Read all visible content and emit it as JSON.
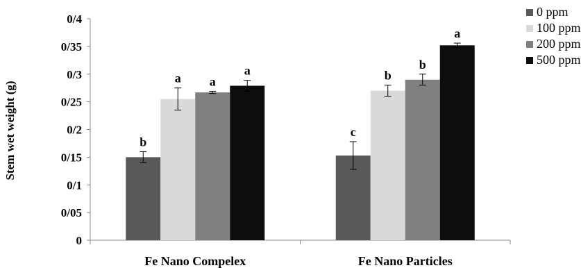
{
  "chart_data": {
    "type": "bar",
    "ylabel": "Stem wet weight (g)",
    "xlabel": "",
    "ylim": [
      0,
      0.4
    ],
    "y_ticks": [
      {
        "value": 0,
        "label": "0"
      },
      {
        "value": 0.05,
        "label": "0/05"
      },
      {
        "value": 0.1,
        "label": "0/1"
      },
      {
        "value": 0.15,
        "label": "0/15"
      },
      {
        "value": 0.2,
        "label": "0/2"
      },
      {
        "value": 0.25,
        "label": "0/25"
      },
      {
        "value": 0.3,
        "label": "0/3"
      },
      {
        "value": 0.35,
        "label": "0/35"
      },
      {
        "value": 0.4,
        "label": "0/4"
      }
    ],
    "categories": [
      "Fe Nano Compelex",
      "Fe Nano Particles"
    ],
    "series": [
      {
        "name": "0 ppm",
        "color": "#595959",
        "values": [
          0.15,
          0.153
        ],
        "errors": [
          0.01,
          0.025
        ],
        "letters": [
          "b",
          "c"
        ]
      },
      {
        "name": "100 ppm",
        "color": "#d9d9d9",
        "values": [
          0.255,
          0.27
        ],
        "errors": [
          0.02,
          0.01
        ],
        "letters": [
          "a",
          "b"
        ]
      },
      {
        "name": "200 ppm",
        "color": "#808080",
        "values": [
          0.267,
          0.29
        ],
        "errors": [
          0.002,
          0.01
        ],
        "letters": [
          "a",
          "b"
        ]
      },
      {
        "name": "500 ppm",
        "color": "#0d0d0d",
        "values": [
          0.279,
          0.352
        ],
        "errors": [
          0.01,
          0.004
        ],
        "letters": [
          "a",
          "a"
        ]
      }
    ],
    "grid": false,
    "legend_position": "right"
  }
}
